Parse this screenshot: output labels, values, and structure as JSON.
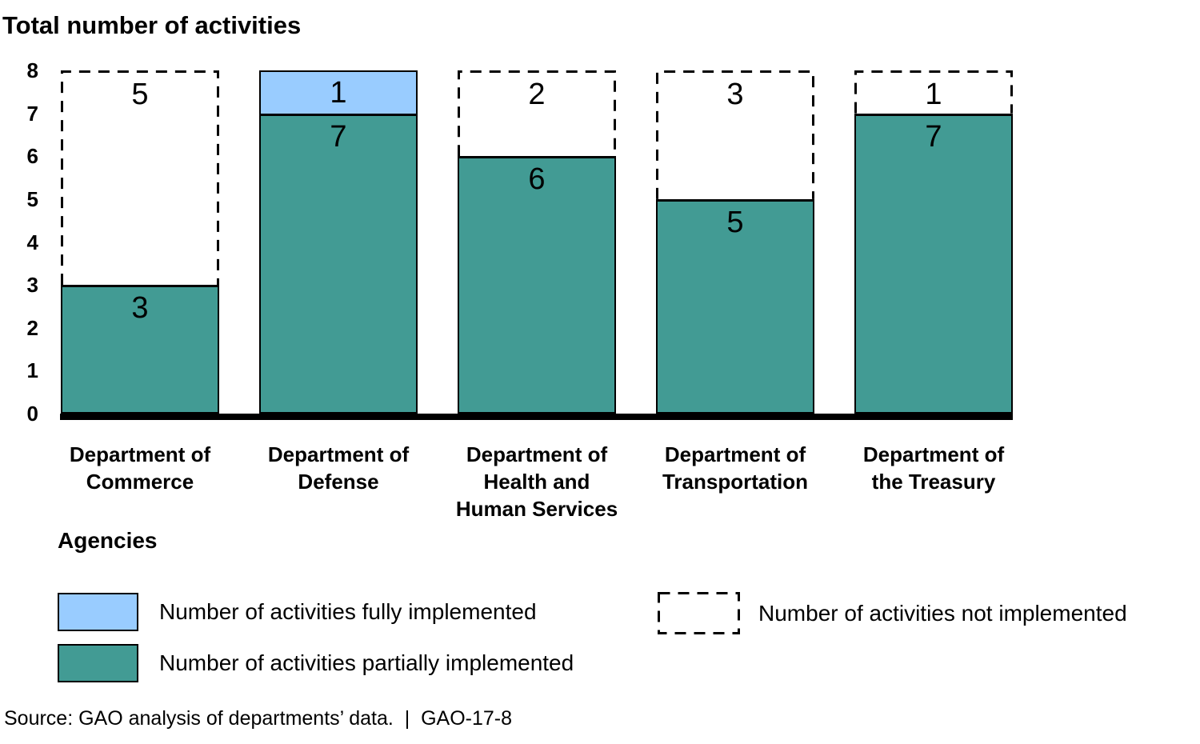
{
  "title": "Total number of activities",
  "agencies_label": "Agencies",
  "source_line": "Source: GAO analysis of departments’ data.  |  GAO-17-8",
  "colors": {
    "fully_implemented": "#99CCFF",
    "partially_implemented": "#429B94",
    "outline": "#000000"
  },
  "legend": {
    "fully": "Number of activities fully implemented",
    "partially": "Number of activities partially implemented",
    "not_implemented": "Number of activities not implemented"
  },
  "chart_data": {
    "type": "bar",
    "stacked": true,
    "title": "Total number of activities",
    "xlabel": "Agencies",
    "ylabel": "Total number of activities",
    "ylim": [
      0,
      8
    ],
    "yticks": [
      0,
      1,
      2,
      3,
      4,
      5,
      6,
      7,
      8
    ],
    "grid": false,
    "legend_position": "bottom",
    "categories": [
      "Department of Commerce",
      "Department of Defense",
      "Department of Health and Human Services",
      "Department of Transportation",
      "Department of the Treasury"
    ],
    "category_label_lines": [
      [
        "Department of",
        "Commerce"
      ],
      [
        "Department of",
        "Defense"
      ],
      [
        "Department of",
        "Health and",
        "Human Services"
      ],
      [
        "Department of",
        "Transportation"
      ],
      [
        "Department of",
        "the Treasury"
      ]
    ],
    "series": [
      {
        "name": "Number of activities fully implemented",
        "style": "solid-lightblue",
        "values": [
          0,
          1,
          0,
          0,
          0
        ]
      },
      {
        "name": "Number of activities partially implemented",
        "style": "solid-teal",
        "values": [
          3,
          7,
          6,
          5,
          7
        ]
      },
      {
        "name": "Number of activities not implemented",
        "style": "dashed-outline",
        "values": [
          5,
          0,
          2,
          3,
          1
        ]
      }
    ]
  }
}
